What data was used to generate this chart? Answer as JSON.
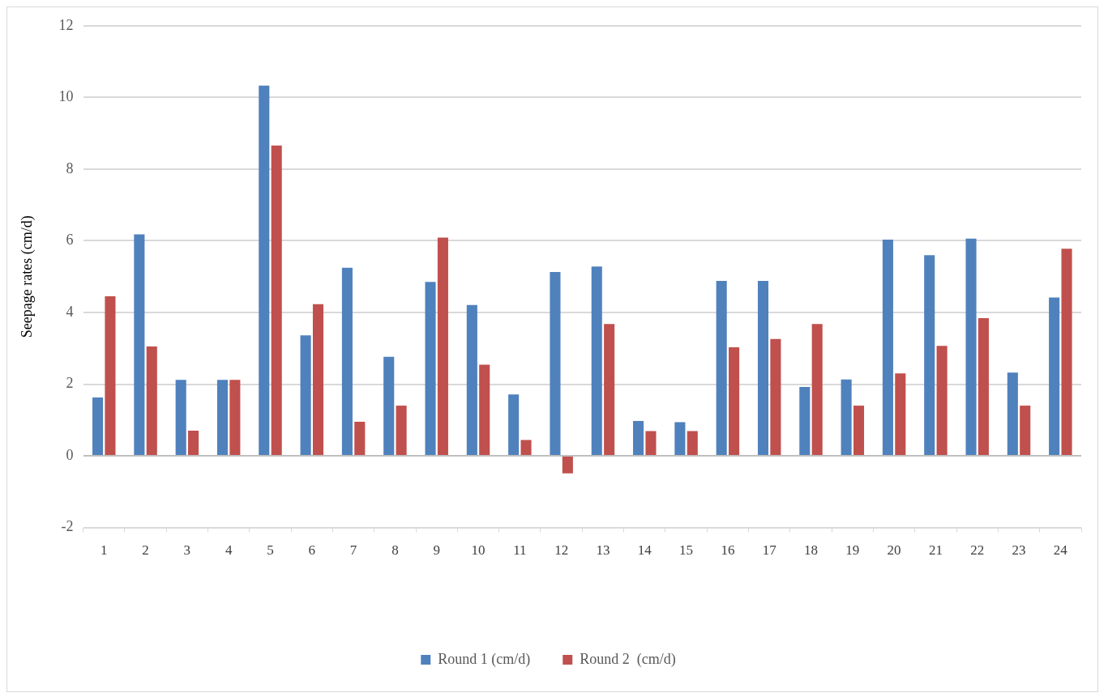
{
  "chart_data": {
    "type": "bar",
    "ylabel": "Seepage rates (cm/d)",
    "categories": [
      "1",
      "2",
      "3",
      "4",
      "5",
      "6",
      "7",
      "8",
      "9",
      "10",
      "11",
      "12",
      "13",
      "14",
      "15",
      "16",
      "17",
      "18",
      "19",
      "20",
      "21",
      "22",
      "23",
      "24"
    ],
    "series": [
      {
        "name": "Round 1 (cm/d)",
        "color": "#4f81bd",
        "values": [
          1.63,
          6.18,
          2.12,
          2.12,
          10.33,
          3.36,
          5.25,
          2.76,
          4.85,
          4.21,
          1.71,
          5.13,
          5.28,
          0.97,
          0.94,
          4.88,
          4.88,
          1.92,
          2.13,
          6.03,
          5.6,
          6.06,
          2.32,
          4.42
        ]
      },
      {
        "name": "Round 2  (cm/d)",
        "color": "#c0504d",
        "values": [
          4.45,
          3.05,
          0.7,
          2.12,
          8.66,
          4.23,
          0.95,
          1.4,
          6.09,
          2.54,
          0.44,
          -0.49,
          3.68,
          0.69,
          0.69,
          3.03,
          3.26,
          3.68,
          1.4,
          2.3,
          3.07,
          3.84,
          1.4,
          5.78
        ]
      }
    ],
    "ylim": [
      -2,
      12
    ],
    "yticks": [
      -2,
      0,
      2,
      4,
      6,
      8,
      10,
      12
    ],
    "grid": "y",
    "legend": "bottom"
  }
}
